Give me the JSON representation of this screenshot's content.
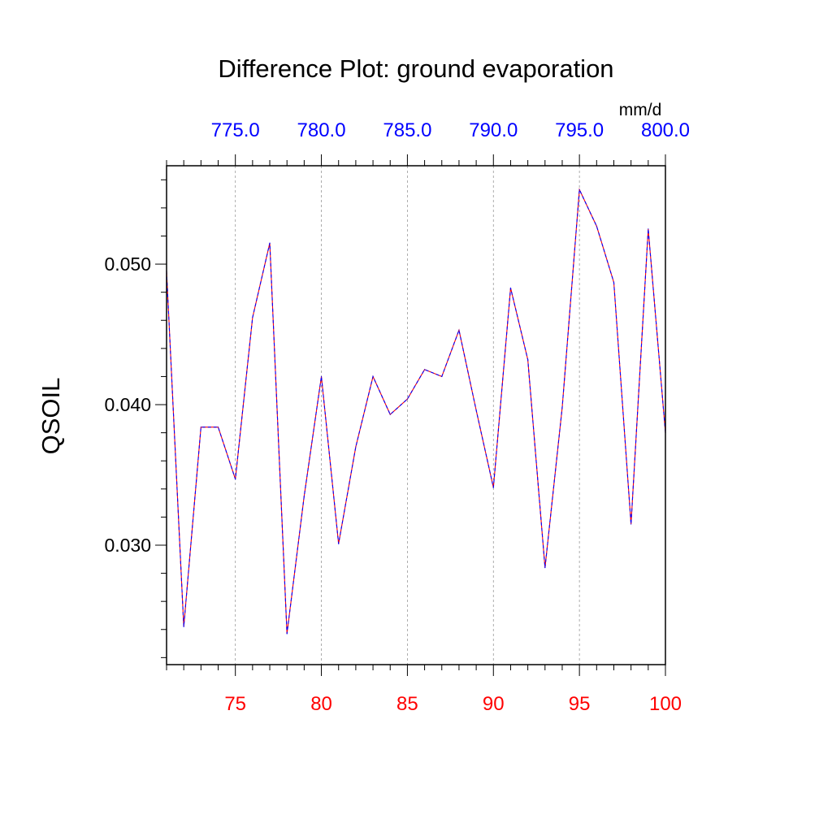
{
  "chart_data": {
    "type": "line",
    "title": "Difference Plot: ground evaporation",
    "ylabel": "QSOIL",
    "units": "mm/d",
    "xlim": [
      71,
      100
    ],
    "ylim": [
      0.0215,
      0.057
    ],
    "x_ticks": [
      "75",
      "80",
      "85",
      "90",
      "95",
      "100"
    ],
    "x_tick_values": [
      75,
      80,
      85,
      90,
      95,
      100
    ],
    "top_ticks": [
      "775.0",
      "780.0",
      "785.0",
      "790.0",
      "795.0",
      "800.0"
    ],
    "top_tick_values": [
      775,
      780,
      785,
      790,
      795,
      800
    ],
    "y_ticks": [
      "0.030",
      "0.040",
      "0.050"
    ],
    "y_tick_values": [
      0.03,
      0.04,
      0.05
    ],
    "grid": "vertical-dashed",
    "colors": {
      "bottom_axis": "#ff0000",
      "top_axis": "#0000ff",
      "line_solid": "#ff0000",
      "line_dash": "#0000ff",
      "grid": "#999999"
    },
    "x": [
      71,
      72,
      73,
      74,
      75,
      76,
      77,
      78,
      79,
      80,
      81,
      82,
      83,
      84,
      85,
      86,
      87,
      88,
      89,
      90,
      91,
      92,
      93,
      94,
      95,
      96,
      97,
      98,
      99,
      100
    ],
    "series": [
      {
        "values": [
          0.0495,
          0.0242,
          0.0384,
          0.0384,
          0.0347,
          0.0462,
          0.0515,
          0.0237,
          0.0335,
          0.042,
          0.0301,
          0.037,
          0.042,
          0.0393,
          0.0404,
          0.0425,
          0.042,
          0.0453,
          0.0396,
          0.0341,
          0.0483,
          0.0432,
          0.0284,
          0.0398,
          0.0553,
          0.0527,
          0.0487,
          0.0315,
          0.0525,
          0.038
        ]
      }
    ]
  }
}
